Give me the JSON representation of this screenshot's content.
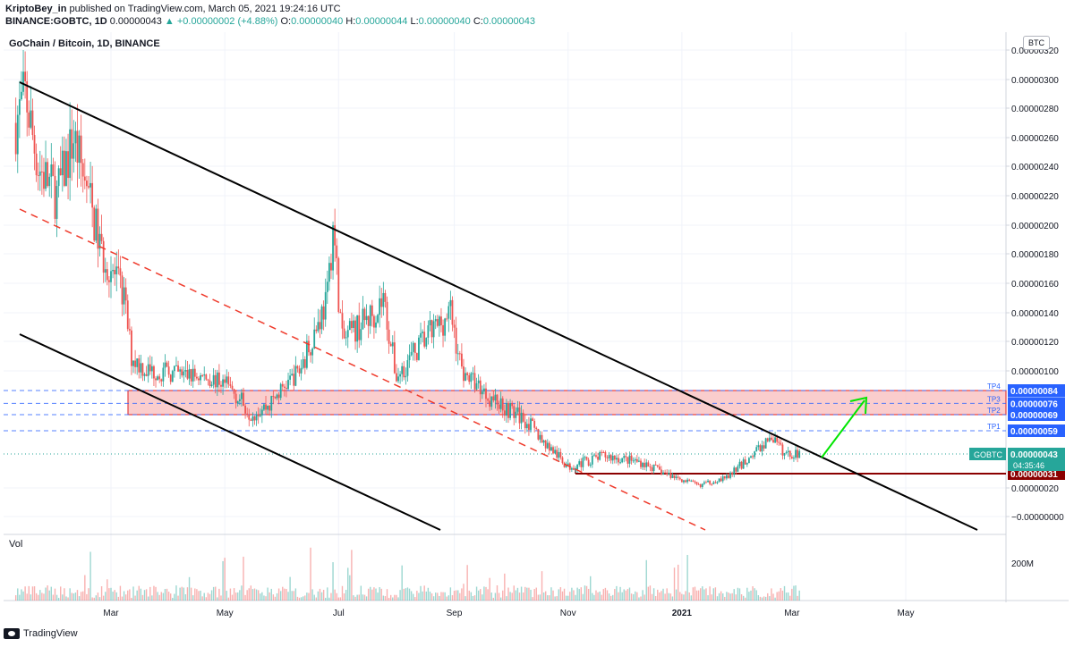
{
  "header": {
    "author": "KriptoBey_in",
    "published_text": "published on TradingView.com, March 05, 2021 19:24:16 UTC",
    "symbol": "BINANCE:GOBTC, 1D",
    "price": "0.00000043",
    "change": "▲ +0.00000002 (+4.88%)",
    "o_label": "O:",
    "o_value": "0.00000040",
    "h_label": "H:",
    "h_value": "0.00000044",
    "l_label": "L:",
    "l_value": "0.00000040",
    "c_label": "C:",
    "c_value": "0.00000043"
  },
  "chart_title": "GoChain / Bitcoin, 1D, BINANCE",
  "currency_badge": "BTC",
  "volume_label": "Vol",
  "footer": {
    "brand": "TradingView"
  },
  "colors": {
    "up": "#26a69a",
    "down": "#ef5350",
    "zone_fill": "#f8bcbc",
    "zone_border": "#e01e1e",
    "tp_line": "#2962ff",
    "support": "#8b0000",
    "arrow": "#00e600",
    "channel": "#000000",
    "midline": "#ef3b2c"
  },
  "chart_data": {
    "type": "candlestick",
    "title": "GoChain / Bitcoin, 1D, BINANCE",
    "y_axis": {
      "ticks": [
        3.2e-06,
        3e-06,
        2.8e-06,
        2.6e-06,
        2.4e-06,
        2.2e-06,
        2e-06,
        1.8e-06,
        1.6e-06,
        1.4e-06,
        1.2e-06,
        1e-06,
        2e-07,
        0
      ],
      "tick_labels": [
        "0.00000320",
        "0.00000300",
        "0.00000280",
        "0.00000260",
        "0.00000240",
        "0.00000220",
        "0.00000200",
        "0.00000180",
        "0.00000160",
        "0.00000140",
        "0.00000120",
        "0.00000100",
        "0.00000020",
        "−0.00000000"
      ],
      "scale": "log"
    },
    "x_axis": {
      "ticks": [
        "2020-03-01",
        "2020-05-01",
        "2020-07-01",
        "2020-09-01",
        "2020-11-01",
        "2021-01-01",
        "2021-03-01",
        "2021-05-01"
      ],
      "tick_labels": [
        "Mar",
        "May",
        "Jul",
        "Sep",
        "Nov",
        "2021",
        "Mar",
        "May"
      ],
      "range": [
        "2020-01-10",
        "2021-07-05"
      ]
    },
    "volume_axis": {
      "tick_labels": [
        "200M"
      ]
    },
    "price_path": [
      [
        "2020-01-10",
        2.7e-06
      ],
      [
        "2020-01-15",
        2.9e-06
      ],
      [
        "2020-01-22",
        2.4e-06
      ],
      [
        "2020-02-01",
        2.2e-06
      ],
      [
        "2020-02-10",
        2.6e-06
      ],
      [
        "2020-02-18",
        2.2e-06
      ],
      [
        "2020-02-25",
        1.8e-06
      ],
      [
        "2020-03-01",
        1.7e-06
      ],
      [
        "2020-03-08",
        1.5e-06
      ],
      [
        "2020-03-12",
        1.1e-06
      ],
      [
        "2020-03-20",
        1e-06
      ],
      [
        "2020-04-01",
        9.8e-07
      ],
      [
        "2020-04-20",
        9.5e-07
      ],
      [
        "2020-05-01",
        9e-07
      ],
      [
        "2020-05-15",
        7e-07
      ],
      [
        "2020-05-25",
        7.5e-07
      ],
      [
        "2020-06-10",
        1e-06
      ],
      [
        "2020-06-25",
        1.5e-06
      ],
      [
        "2020-06-28",
        2e-06
      ],
      [
        "2020-07-03",
        1.2e-06
      ],
      [
        "2020-07-20",
        1.4e-06
      ],
      [
        "2020-07-25",
        1.5e-06
      ],
      [
        "2020-08-01",
        9.5e-07
      ],
      [
        "2020-08-15",
        1.2e-06
      ],
      [
        "2020-08-30",
        1.4e-06
      ],
      [
        "2020-09-05",
        1e-06
      ],
      [
        "2020-09-20",
        8e-07
      ],
      [
        "2020-10-10",
        6.5e-07
      ],
      [
        "2020-10-20",
        5e-07
      ],
      [
        "2020-11-01",
        3.5e-07
      ],
      [
        "2020-11-20",
        4.2e-07
      ],
      [
        "2020-12-10",
        3.8e-07
      ],
      [
        "2020-12-25",
        3e-07
      ],
      [
        "2021-01-10",
        2.2e-07
      ],
      [
        "2021-01-25",
        2.8e-07
      ],
      [
        "2021-02-10",
        4.5e-07
      ],
      [
        "2021-02-18",
        5.5e-07
      ],
      [
        "2021-02-25",
        4.3e-07
      ],
      [
        "2021-03-05",
        4.3e-07
      ]
    ],
    "series": [
      {
        "name": "GOBTC",
        "last": "0.00000043",
        "countdown": "04:35:46"
      }
    ],
    "levels": [
      {
        "name": "TP4",
        "value": "0.00000084"
      },
      {
        "name": "TP3",
        "value": "0.00000076"
      },
      {
        "name": "TP2",
        "value": "0.00000069"
      },
      {
        "name": "TP1",
        "value": "0.00000059"
      },
      {
        "name": "",
        "value": "0.00000031"
      }
    ],
    "annotations": [
      "resistance zone 0.00000069–0.00000084",
      "descending channel",
      "dashed channel midline",
      "green arrow pointing up to TP zone"
    ],
    "grid": true
  }
}
